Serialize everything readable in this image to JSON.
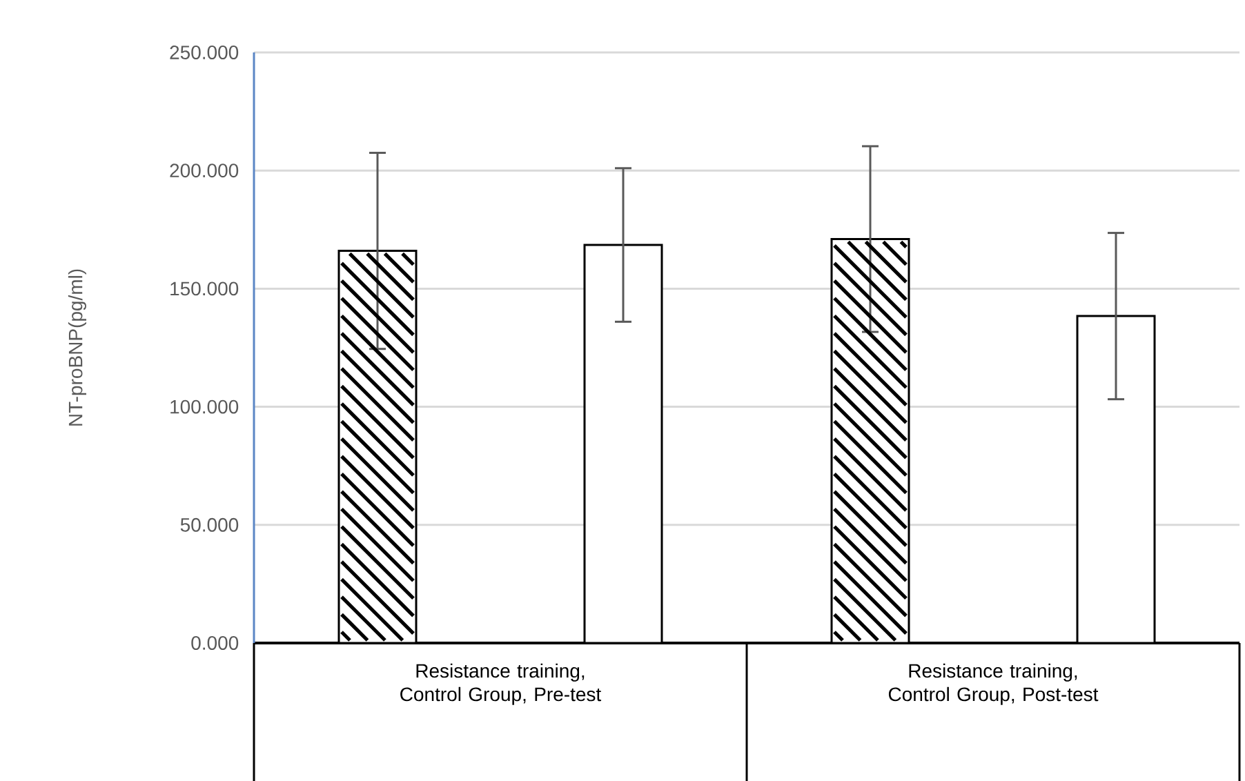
{
  "chart_data": {
    "type": "bar",
    "ylabel": "NT-proBNP(pg/ml)",
    "categories": [
      "Resistance training, Control Group, Pre-test",
      "Resistance training, Control Group, Post-test"
    ],
    "series": [
      {
        "color": "#000000",
        "values": [
          166,
          171
        ],
        "errors": [
          41.5,
          39.3
        ]
      },
      {
        "color": "#ffffff",
        "values": [
          168.5,
          138.4
        ],
        "errors": [
          32.5,
          35.2
        ]
      }
    ],
    "ylim": [
      0,
      250
    ],
    "yticks": [
      {
        "value": 0,
        "label": "0.000"
      },
      {
        "value": 50,
        "label": "50.000"
      },
      {
        "value": 100,
        "label": "100.000"
      },
      {
        "value": 150,
        "label": "150.000"
      },
      {
        "value": 200,
        "label": "200.000"
      },
      {
        "value": 250,
        "label": "250.000"
      }
    ],
    "grid": "y"
  }
}
